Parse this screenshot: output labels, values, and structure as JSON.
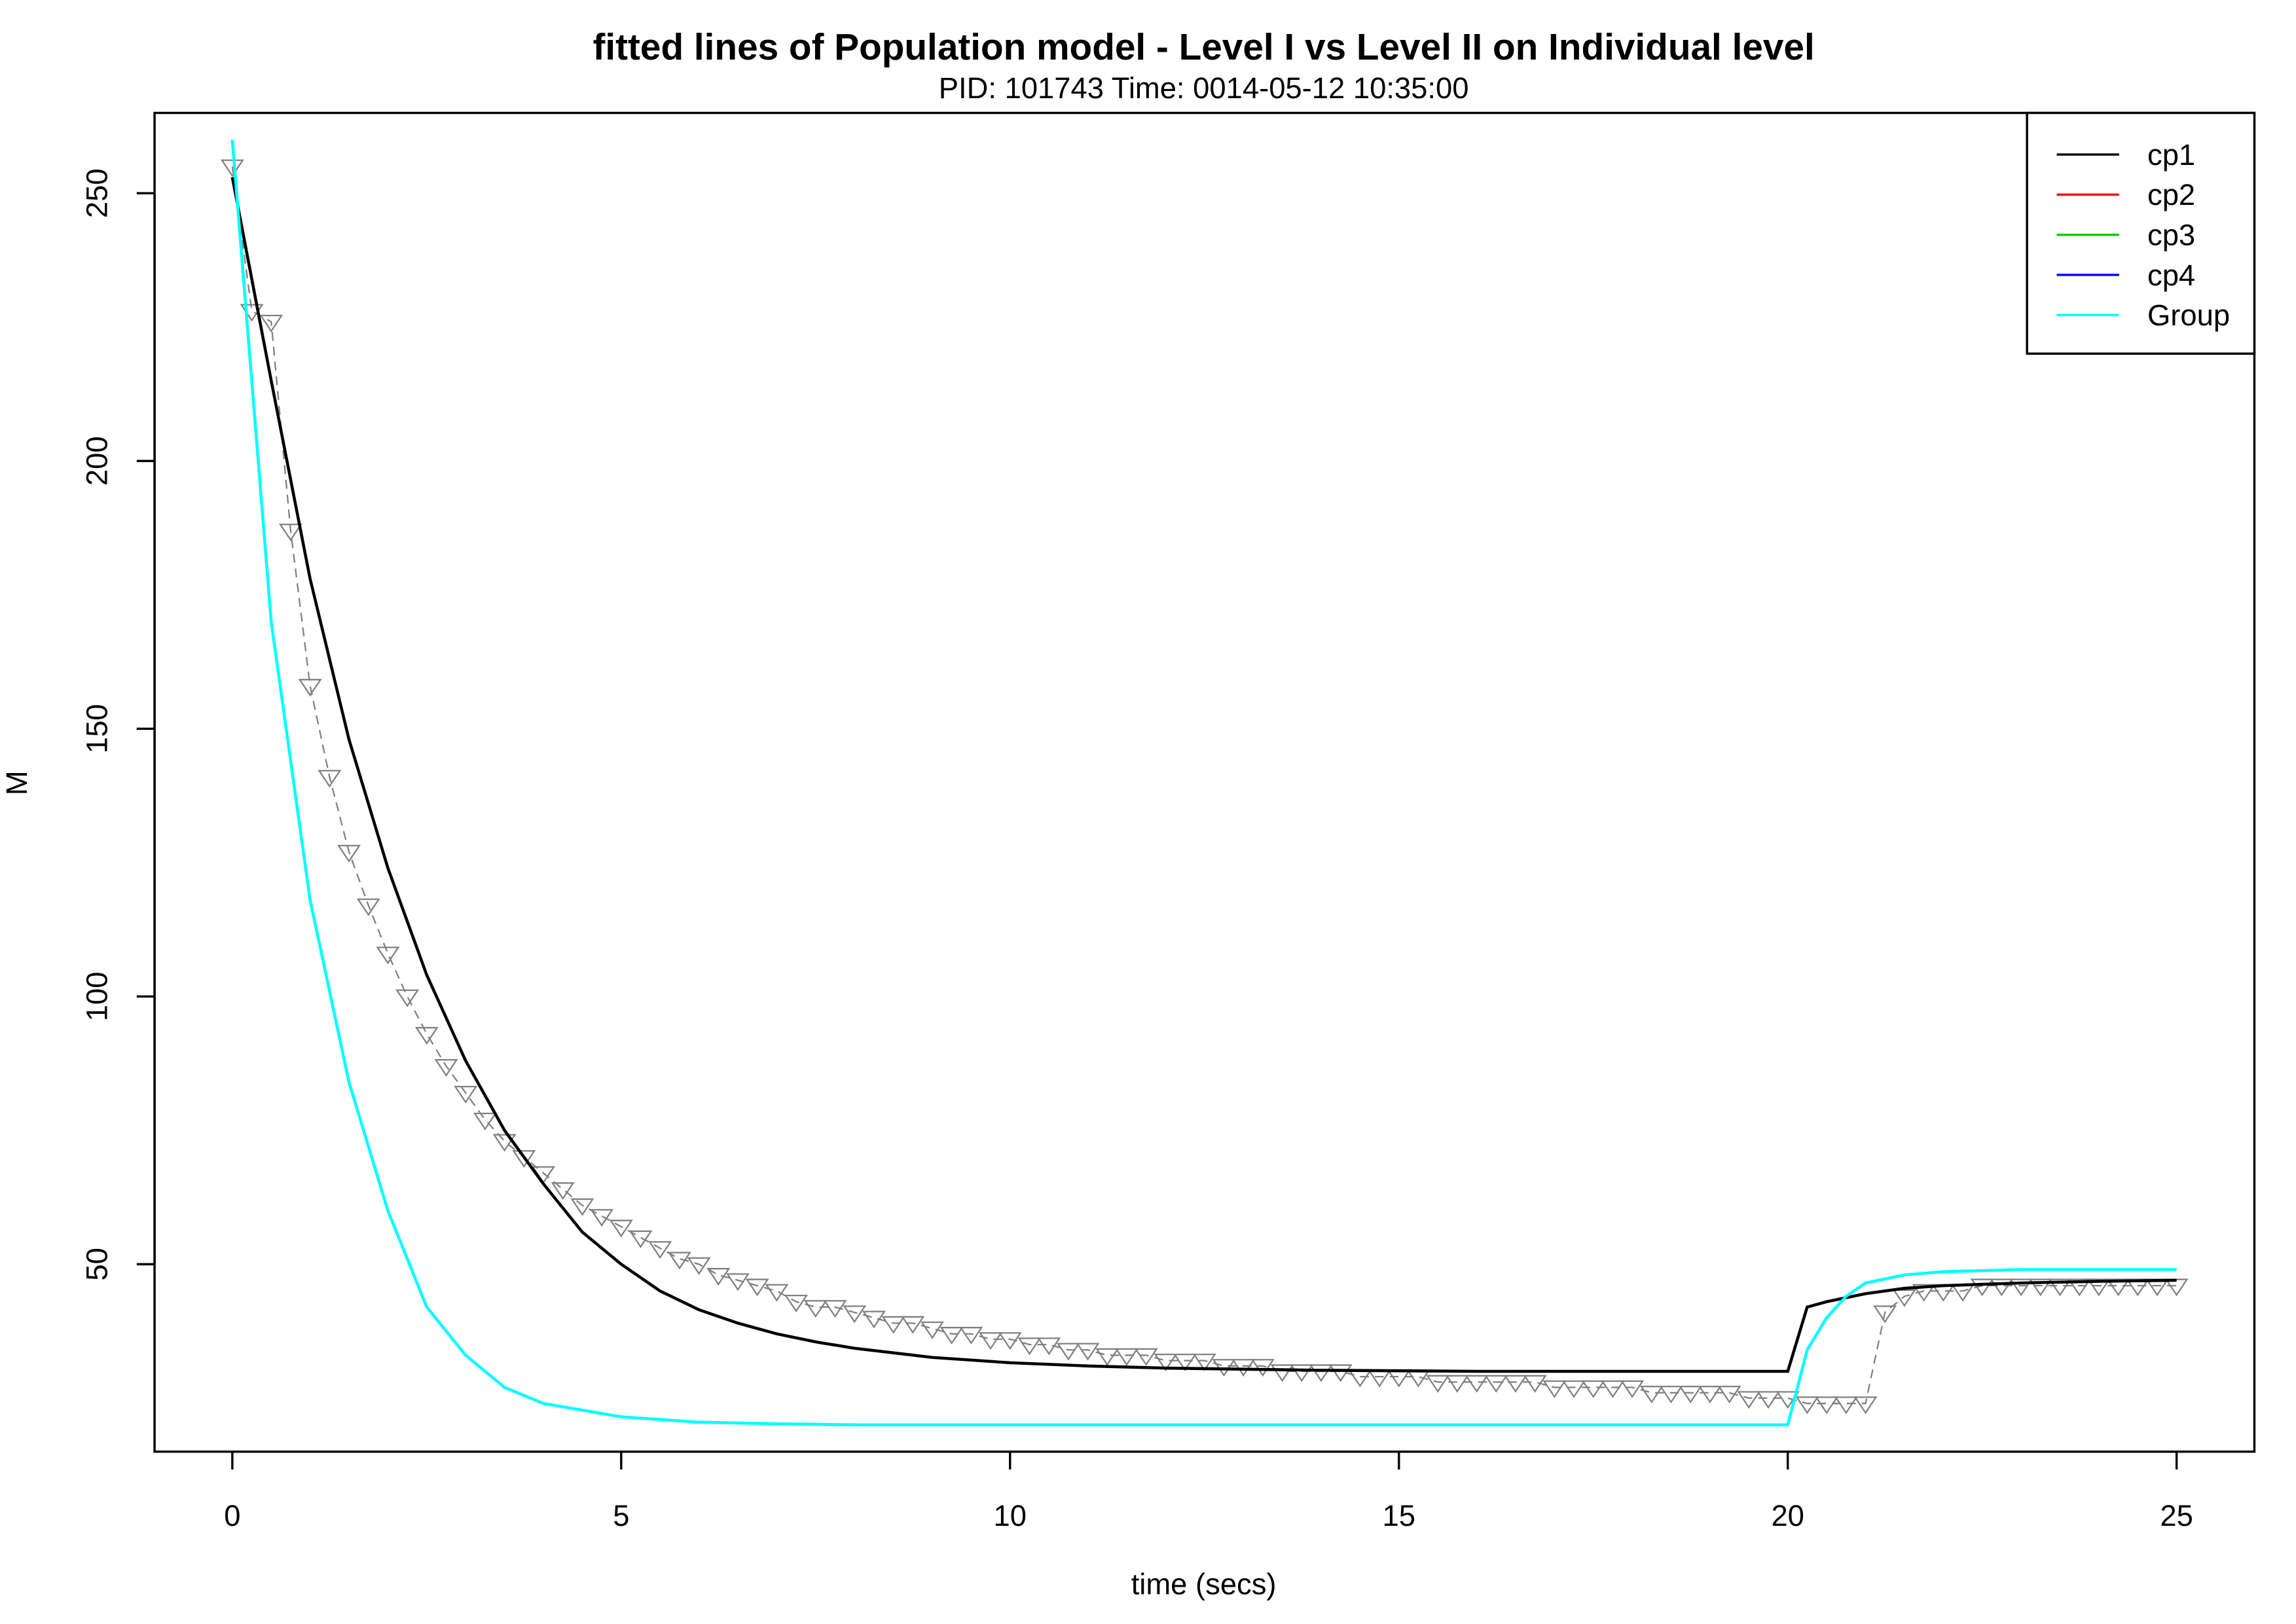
{
  "chart_data": {
    "type": "line",
    "title": "fitted lines of Population model - Level I vs Level II on Individual level",
    "subtitle": "PID:  101743      Time:  0014-05-12 10:35:00",
    "x_label": "time (secs)",
    "y_label": "M",
    "xlim": [
      -1,
      26
    ],
    "ylim": [
      15,
      265
    ],
    "xticks": [
      0,
      5,
      10,
      15,
      20,
      25
    ],
    "yticks": [
      50,
      100,
      150,
      200,
      250
    ],
    "legend": "top-right",
    "observed": {
      "color": "#808080",
      "x": [
        0,
        0.25,
        0.5,
        0.75,
        1,
        1.25,
        1.5,
        1.75,
        2,
        2.25,
        2.5,
        2.75,
        3,
        3.25,
        3.5,
        3.75,
        4,
        4.25,
        4.5,
        4.75,
        5,
        5.25,
        5.5,
        5.75,
        6,
        6.25,
        6.5,
        6.75,
        7,
        7.25,
        7.5,
        7.75,
        8,
        8.25,
        8.5,
        8.75,
        9,
        9.25,
        9.5,
        9.75,
        10,
        10.25,
        10.5,
        10.75,
        11,
        11.25,
        11.5,
        11.75,
        12,
        12.25,
        12.5,
        12.75,
        13,
        13.25,
        13.5,
        13.75,
        14,
        14.25,
        14.5,
        14.75,
        15,
        15.25,
        15.5,
        15.75,
        16,
        16.25,
        16.5,
        16.75,
        17,
        17.25,
        17.5,
        17.75,
        18,
        18.25,
        18.5,
        18.75,
        19,
        19.25,
        19.5,
        19.75,
        20,
        20.25,
        20.5,
        20.75,
        21,
        21.25,
        21.5,
        21.75,
        22,
        22.25,
        22.5,
        22.75,
        23,
        23.25,
        23.5,
        23.75,
        24,
        24.25,
        24.5,
        24.75,
        25
      ],
      "values": [
        255,
        228,
        226,
        187,
        158,
        141,
        127,
        117,
        108,
        100,
        93,
        87,
        82,
        77,
        73,
        70,
        67,
        64,
        61,
        59,
        57,
        55,
        53,
        51,
        50,
        48,
        47,
        46,
        45,
        43,
        42,
        42,
        41,
        40,
        39,
        39,
        38,
        37,
        37,
        36,
        36,
        35,
        35,
        34,
        34,
        33,
        33,
        33,
        32,
        32,
        32,
        31,
        31,
        31,
        30,
        30,
        30,
        30,
        29,
        29,
        29,
        29,
        28,
        28,
        28,
        28,
        28,
        28,
        27,
        27,
        27,
        27,
        27,
        26,
        26,
        26,
        26,
        26,
        25,
        25,
        25,
        24,
        24,
        24,
        24,
        41,
        44,
        45,
        45,
        45,
        46,
        46,
        46,
        46,
        46,
        46,
        46,
        46,
        46,
        46,
        46
      ]
    },
    "series": [
      {
        "name": "cp1",
        "color": "#000000",
        "x": [
          0,
          0.5,
          1,
          1.5,
          2,
          2.5,
          3,
          3.5,
          4,
          4.5,
          5,
          5.5,
          6,
          6.5,
          7,
          7.5,
          8,
          9,
          10,
          11,
          12,
          14,
          16,
          18,
          20,
          20.25,
          20.5,
          21,
          21.5,
          22,
          23,
          24,
          25
        ],
        "values": [
          253,
          215,
          178,
          148,
          124,
          104,
          88,
          75,
          65,
          56,
          50,
          45,
          41.5,
          39,
          37,
          35.5,
          34.3,
          32.6,
          31.6,
          31,
          30.6,
          30.2,
          30,
          30,
          30,
          42,
          43,
          44.5,
          45.5,
          46,
          46.5,
          46.8,
          47
        ]
      },
      {
        "name": "cp2",
        "color": "#ff0000",
        "x": [
          0
        ],
        "values": [
          null
        ]
      },
      {
        "name": "cp3",
        "color": "#00cc00",
        "x": [
          0
        ],
        "values": [
          null
        ]
      },
      {
        "name": "cp4",
        "color": "#0000ff",
        "x": [
          0
        ],
        "values": [
          null
        ]
      },
      {
        "name": "Group",
        "color": "#00ffff",
        "x": [
          0,
          0.5,
          1,
          1.5,
          2,
          2.5,
          3,
          3.5,
          4,
          5,
          6,
          7,
          8,
          20,
          20.25,
          20.5,
          20.75,
          21,
          21.5,
          22,
          23,
          25
        ],
        "values": [
          260,
          170,
          118,
          84,
          60,
          42,
          33,
          27,
          24,
          21.5,
          20.5,
          20.2,
          20,
          20,
          34,
          40,
          44,
          46.5,
          48,
          48.6,
          49,
          49
        ]
      }
    ]
  }
}
